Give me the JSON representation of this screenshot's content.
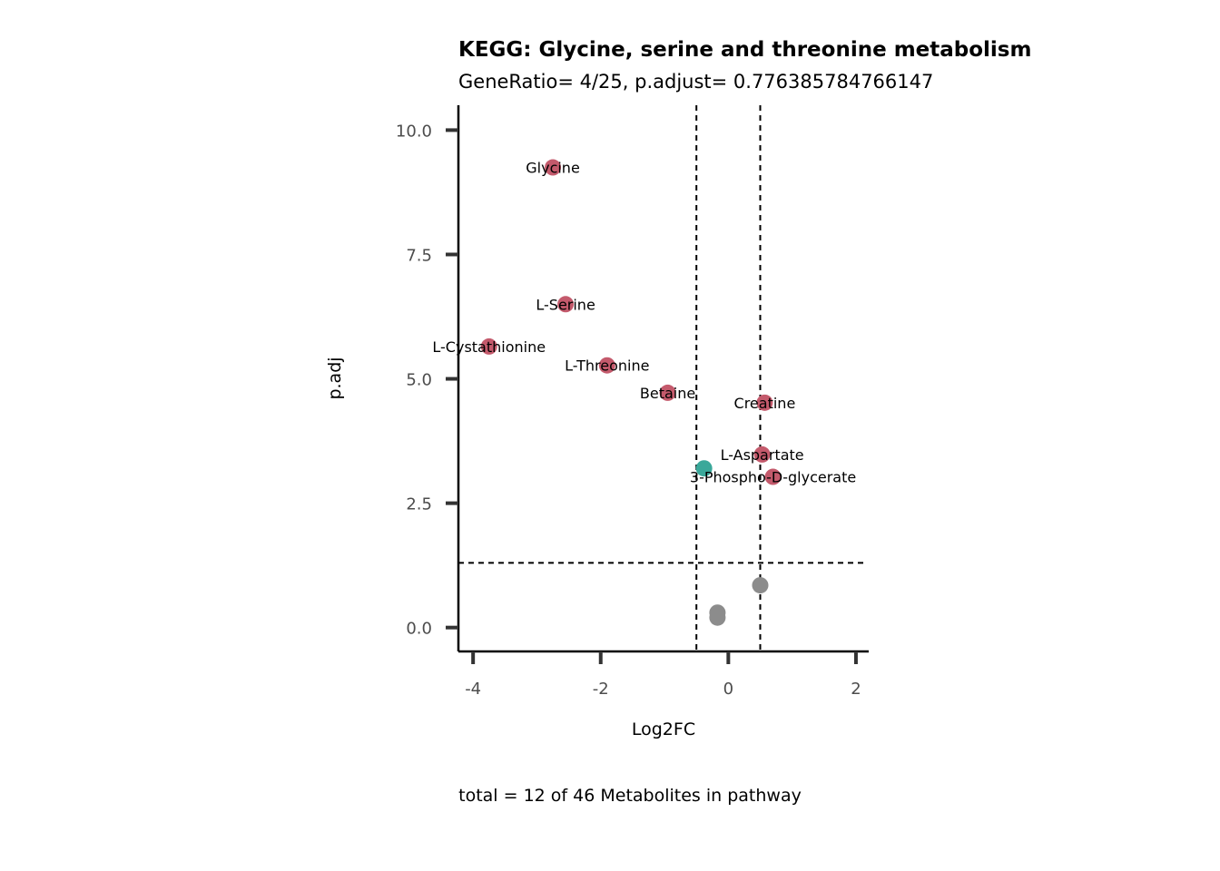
{
  "chart_data": {
    "type": "scatter",
    "title": "KEGG: Glycine, serine and threonine metabolism",
    "subtitle": "GeneRatio= 4/25, p.adjust= 0.776385784766147",
    "xlabel": "Log2FC",
    "ylabel": "p.adj",
    "caption": "total = 12 of 46 Metabolites in pathway",
    "xlim": [
      -4.23,
      2.2
    ],
    "ylim": [
      -0.48,
      10.5
    ],
    "x_ticks": [
      -4,
      -2,
      0,
      2
    ],
    "x_tick_labels": [
      "-4",
      "-2",
      "0",
      "2"
    ],
    "y_ticks": [
      0,
      2.5,
      5,
      7.5,
      10
    ],
    "y_tick_labels": [
      "0.0",
      "2.5",
      "5.0",
      "7.5",
      "10.0"
    ],
    "grid": false,
    "thresholds": {
      "log2fc": [
        -0.5,
        0.5
      ],
      "p_adj": 1.3
    },
    "colors": {
      "up": "#c45a6c",
      "down": "#3aa89a",
      "ns": "#8c8c8c"
    },
    "points": [
      {
        "x": -2.75,
        "y": 9.25,
        "label": "Glycine",
        "group": "up"
      },
      {
        "x": -2.55,
        "y": 6.5,
        "label": "L-Serine",
        "group": "up"
      },
      {
        "x": -3.75,
        "y": 5.65,
        "label": "L-Cystathionine",
        "group": "up"
      },
      {
        "x": -1.9,
        "y": 5.27,
        "label": "L-Threonine",
        "group": "up"
      },
      {
        "x": -0.95,
        "y": 4.72,
        "label": "Betaine",
        "group": "up"
      },
      {
        "x": 0.57,
        "y": 4.52,
        "label": "Creatine",
        "group": "up"
      },
      {
        "x": 0.53,
        "y": 3.48,
        "label": "L-Aspartate",
        "group": "up"
      },
      {
        "x": 0.7,
        "y": 3.03,
        "label": "3-Phospho-D-glycerate",
        "group": "up"
      },
      {
        "x": -0.38,
        "y": 3.2,
        "label": "",
        "group": "down"
      },
      {
        "x": 0.5,
        "y": 0.85,
        "label": "",
        "group": "ns"
      },
      {
        "x": -0.17,
        "y": 0.3,
        "label": "",
        "group": "ns"
      },
      {
        "x": -0.17,
        "y": 0.2,
        "label": "",
        "group": "ns"
      }
    ]
  }
}
